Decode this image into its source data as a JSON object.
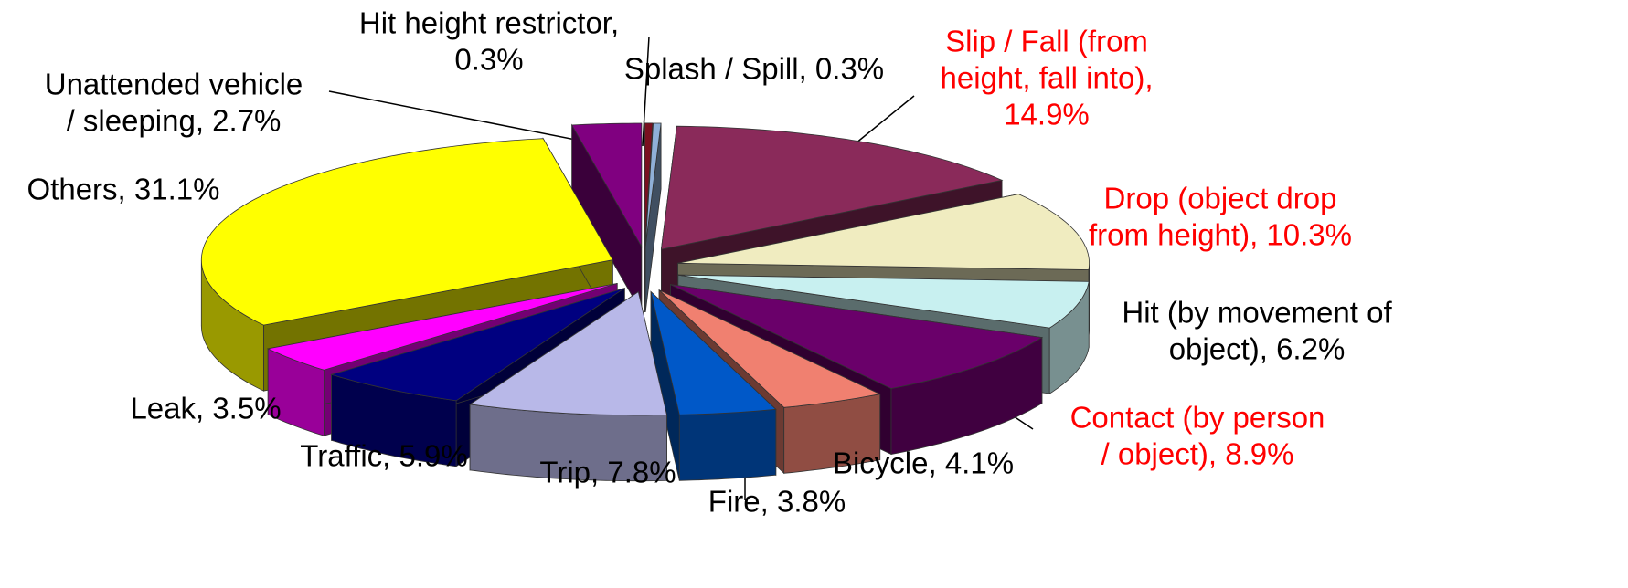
{
  "chart_data": {
    "type": "pie3d",
    "labels": [
      [
        "Hit height restrictor,",
        "0.3%"
      ],
      [
        "Splash / Spill, 0.3%"
      ],
      [
        "Slip / Fall (from",
        "height, fall into),",
        "14.9%"
      ],
      [
        "Drop (object drop",
        "from height), 10.3%"
      ],
      [
        "Hit (by movement of",
        "object), 6.2%"
      ],
      [
        "Contact (by person",
        "/ object), 8.9%"
      ],
      [
        "Bicycle, 4.1%"
      ],
      [
        "Fire, 3.8%"
      ],
      [
        "Trip, 7.8%"
      ],
      [
        "Traffic, 5.9%"
      ],
      [
        "Leak, 3.5%"
      ],
      [
        "Others, 31.1%"
      ],
      [
        "Unattended vehicle",
        "/ sleeping, 2.7%"
      ]
    ],
    "values": [
      0.3,
      0.3,
      14.9,
      10.3,
      6.2,
      8.9,
      4.1,
      3.8,
      7.8,
      5.9,
      3.5,
      31.1,
      2.7
    ],
    "colors": [
      "#7a1020",
      "#8fb0d8",
      "#8a2a5a",
      "#f0ecc0",
      "#c8f0f0",
      "#6a006a",
      "#f08070",
      "#0058c8",
      "#b8b8e8",
      "#000080",
      "#ff00ff",
      "#ffff00",
      "#800080"
    ],
    "label_colors": [
      "#000000",
      "#000000",
      "#ff0000",
      "#ff0000",
      "#000000",
      "#ff0000",
      "#000000",
      "#000000",
      "#000000",
      "#000000",
      "#000000",
      "#000000",
      "#000000"
    ]
  }
}
